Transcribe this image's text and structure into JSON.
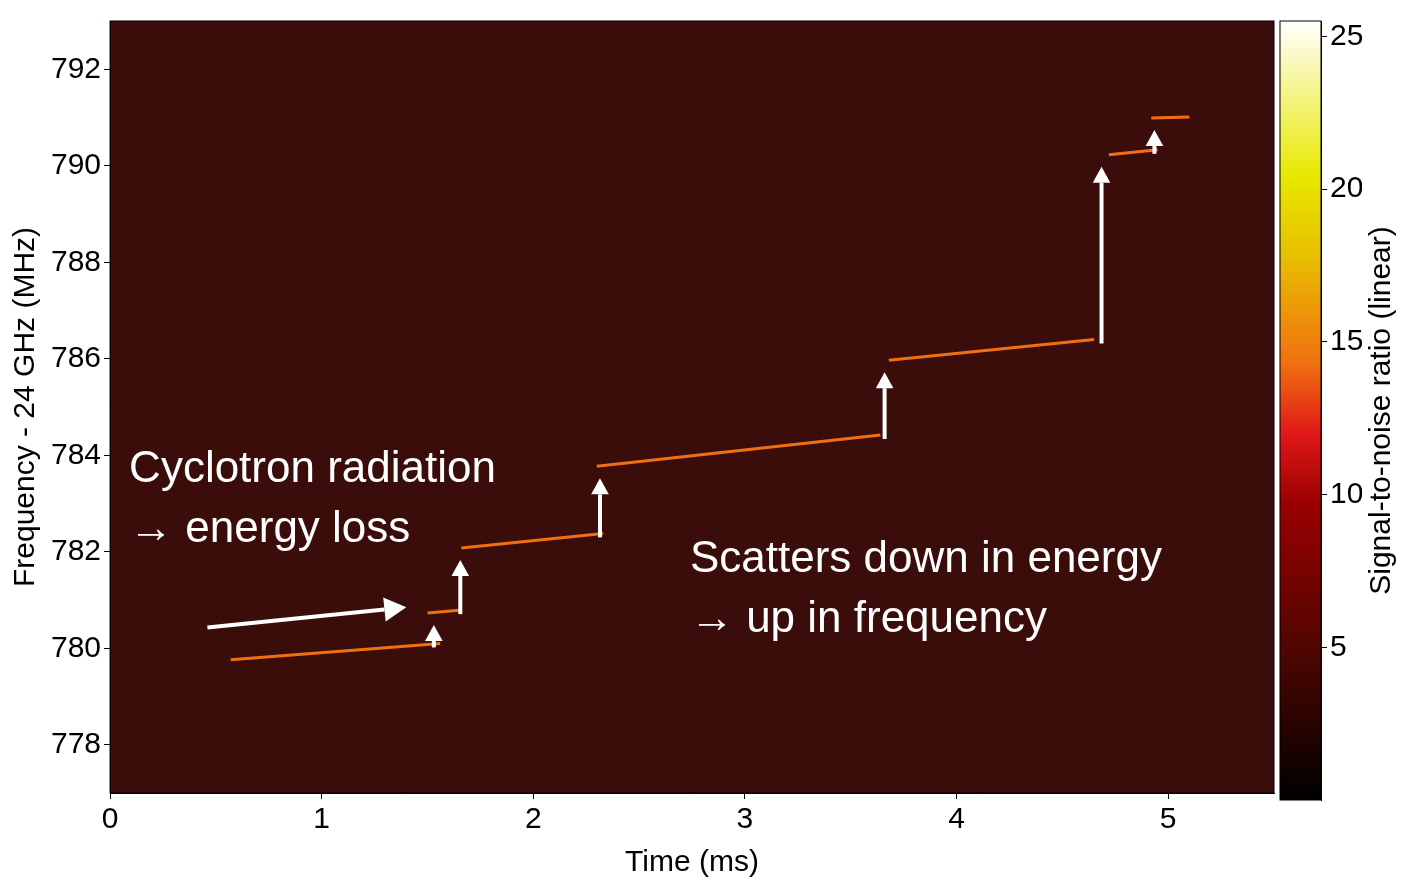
{
  "chart_data": {
    "type": "line",
    "x_label": "Time (ms)",
    "y_label": "Frequency - 24 GHz (MHz)",
    "xlim": [
      0,
      5.5
    ],
    "xticks": [
      0,
      1,
      2,
      3,
      4,
      5
    ],
    "ylim": [
      777,
      793
    ],
    "yticks": [
      778,
      780,
      782,
      784,
      786,
      788,
      790,
      792
    ],
    "grid": false,
    "color": "#f07010",
    "series": [
      {
        "x": [
          0.57,
          1.56
        ],
        "values": [
          779.76,
          780.1
        ]
      },
      {
        "x": [
          1.5,
          1.65
        ],
        "values": [
          780.73,
          780.79
        ]
      },
      {
        "x": [
          1.66,
          2.33
        ],
        "values": [
          782.08,
          782.38
        ]
      },
      {
        "x": [
          2.3,
          3.64
        ],
        "values": [
          783.77,
          784.42
        ]
      },
      {
        "x": [
          3.68,
          4.65
        ],
        "values": [
          785.97,
          786.4
        ]
      },
      {
        "x": [
          4.72,
          4.95
        ],
        "values": [
          790.23,
          790.33
        ]
      },
      {
        "x": [
          4.92,
          5.1
        ],
        "values": [
          790.99,
          791.01
        ]
      }
    ],
    "annotations": [
      {
        "text": [
          "Cyclotron radiation",
          "→ energy loss"
        ]
      },
      {
        "text": [
          "Scatters down in energy",
          "→ up in frequency"
        ]
      }
    ],
    "colorbar": {
      "label": "Signal-to-noise ratio (linear)",
      "range": [
        0,
        25.5
      ],
      "ticks": [
        5,
        10,
        15,
        20,
        25
      ]
    }
  }
}
